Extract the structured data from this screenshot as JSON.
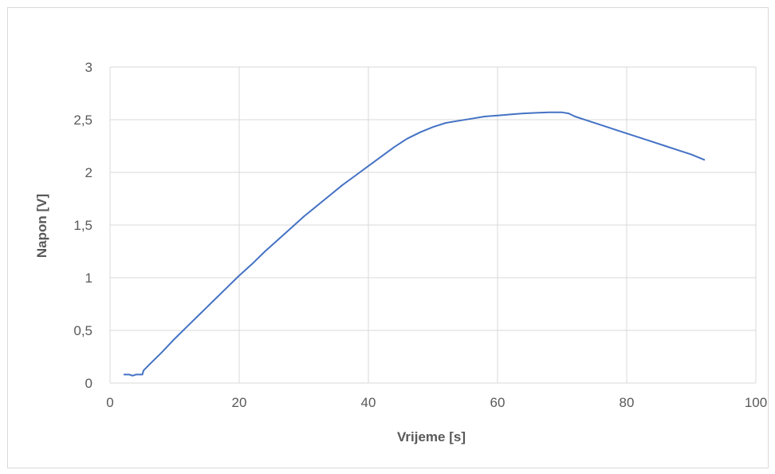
{
  "chart_data": {
    "type": "line",
    "title": "",
    "xlabel": "Vrijeme [s]",
    "ylabel": "Napon [V]",
    "xlim": [
      0,
      100
    ],
    "ylim": [
      0,
      3
    ],
    "x_ticks": [
      "0",
      "20",
      "40",
      "60",
      "80",
      "100"
    ],
    "y_ticks": [
      "0",
      "0,5",
      "1",
      "1,5",
      "2",
      "2,5",
      "3"
    ],
    "grid": true,
    "legend": "none",
    "series": [
      {
        "color": "#4472c4",
        "x": [
          2.2,
          3.0,
          3.5,
          4.0,
          5.0,
          5.2,
          6,
          8,
          10,
          12,
          14,
          16,
          18,
          20,
          22,
          24,
          26,
          28,
          30,
          32,
          34,
          36,
          38,
          40,
          42,
          44,
          46,
          48,
          50,
          52,
          54,
          56,
          58,
          60,
          62,
          64,
          66,
          68,
          70,
          71,
          72,
          74,
          76,
          78,
          80,
          82,
          84,
          86,
          88,
          90,
          92
        ],
        "y": [
          0.08,
          0.08,
          0.07,
          0.08,
          0.08,
          0.12,
          0.17,
          0.29,
          0.42,
          0.54,
          0.66,
          0.78,
          0.9,
          1.02,
          1.13,
          1.25,
          1.36,
          1.47,
          1.58,
          1.68,
          1.78,
          1.88,
          1.97,
          2.06,
          2.15,
          2.24,
          2.32,
          2.38,
          2.43,
          2.47,
          2.49,
          2.51,
          2.53,
          2.54,
          2.55,
          2.56,
          2.565,
          2.57,
          2.57,
          2.56,
          2.53,
          2.49,
          2.45,
          2.41,
          2.37,
          2.33,
          2.29,
          2.25,
          2.21,
          2.17,
          2.12
        ]
      }
    ]
  }
}
